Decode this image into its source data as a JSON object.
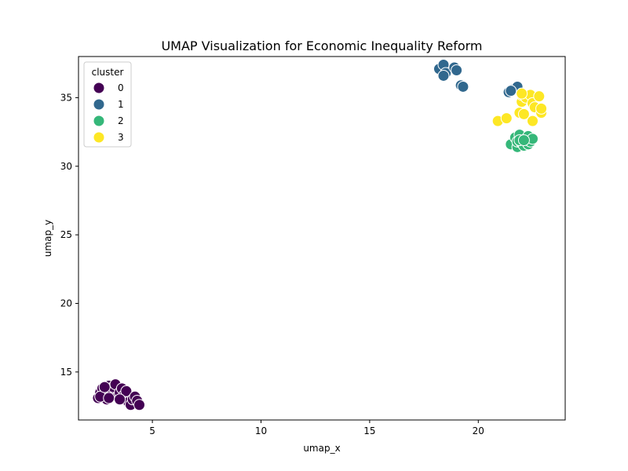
{
  "chart_data": {
    "type": "scatter",
    "title": "UMAP Visualization for Economic Inequality Reform",
    "xlabel": "umap_x",
    "ylabel": "umap_y",
    "xlim": [
      1.6,
      24.0
    ],
    "ylim": [
      11.5,
      38.0
    ],
    "xticks": [
      5,
      10,
      15,
      20
    ],
    "yticks": [
      15,
      20,
      25,
      30,
      35
    ],
    "grid": false,
    "legend": {
      "title": "cluster",
      "placement": "top-left"
    },
    "series": [
      {
        "name": "0",
        "color": "#440154",
        "points": [
          [
            2.5,
            13.1
          ],
          [
            2.6,
            13.5
          ],
          [
            2.7,
            13.8
          ],
          [
            2.8,
            13.4
          ],
          [
            2.9,
            13.0
          ],
          [
            3.0,
            14.0
          ],
          [
            3.1,
            13.6
          ],
          [
            3.2,
            13.9
          ],
          [
            3.3,
            14.1
          ],
          [
            3.4,
            13.2
          ],
          [
            3.5,
            13.5
          ],
          [
            3.6,
            13.8
          ],
          [
            3.7,
            13.3
          ],
          [
            3.8,
            13.6
          ],
          [
            3.9,
            12.8
          ],
          [
            4.0,
            12.6
          ],
          [
            4.1,
            13.0
          ],
          [
            4.2,
            13.2
          ],
          [
            4.3,
            12.9
          ],
          [
            4.4,
            12.6
          ],
          [
            2.6,
            13.2
          ],
          [
            3.0,
            13.1
          ],
          [
            3.5,
            13.0
          ],
          [
            2.8,
            13.9
          ]
        ]
      },
      {
        "name": "1",
        "color": "#31688e",
        "points": [
          [
            18.2,
            37.1
          ],
          [
            18.4,
            37.4
          ],
          [
            18.5,
            36.8
          ],
          [
            18.4,
            36.6
          ],
          [
            18.9,
            37.2
          ],
          [
            19.0,
            37.0
          ],
          [
            19.2,
            35.9
          ],
          [
            19.3,
            35.8
          ],
          [
            21.4,
            35.4
          ],
          [
            21.6,
            35.6
          ],
          [
            21.8,
            35.8
          ],
          [
            21.5,
            35.5
          ]
        ]
      },
      {
        "name": "2",
        "color": "#35b779",
        "points": [
          [
            21.5,
            31.6
          ],
          [
            21.7,
            32.1
          ],
          [
            21.8,
            31.4
          ],
          [
            21.8,
            31.8
          ],
          [
            21.9,
            32.3
          ],
          [
            22.0,
            31.7
          ],
          [
            22.1,
            31.5
          ],
          [
            22.2,
            32.0
          ],
          [
            22.3,
            31.6
          ],
          [
            22.3,
            32.2
          ],
          [
            22.4,
            31.8
          ],
          [
            22.5,
            32.0
          ],
          [
            21.9,
            31.9
          ],
          [
            22.1,
            31.9
          ]
        ]
      },
      {
        "name": "3",
        "color": "#fde725",
        "points": [
          [
            20.9,
            33.3
          ],
          [
            21.3,
            33.5
          ],
          [
            21.9,
            33.9
          ],
          [
            22.0,
            34.7
          ],
          [
            22.0,
            35.2
          ],
          [
            22.1,
            33.8
          ],
          [
            22.2,
            35.0
          ],
          [
            22.4,
            35.2
          ],
          [
            22.5,
            34.6
          ],
          [
            22.5,
            33.3
          ],
          [
            22.6,
            34.3
          ],
          [
            22.8,
            35.1
          ],
          [
            22.9,
            33.9
          ],
          [
            22.9,
            34.2
          ],
          [
            22.0,
            35.3
          ]
        ]
      }
    ]
  }
}
